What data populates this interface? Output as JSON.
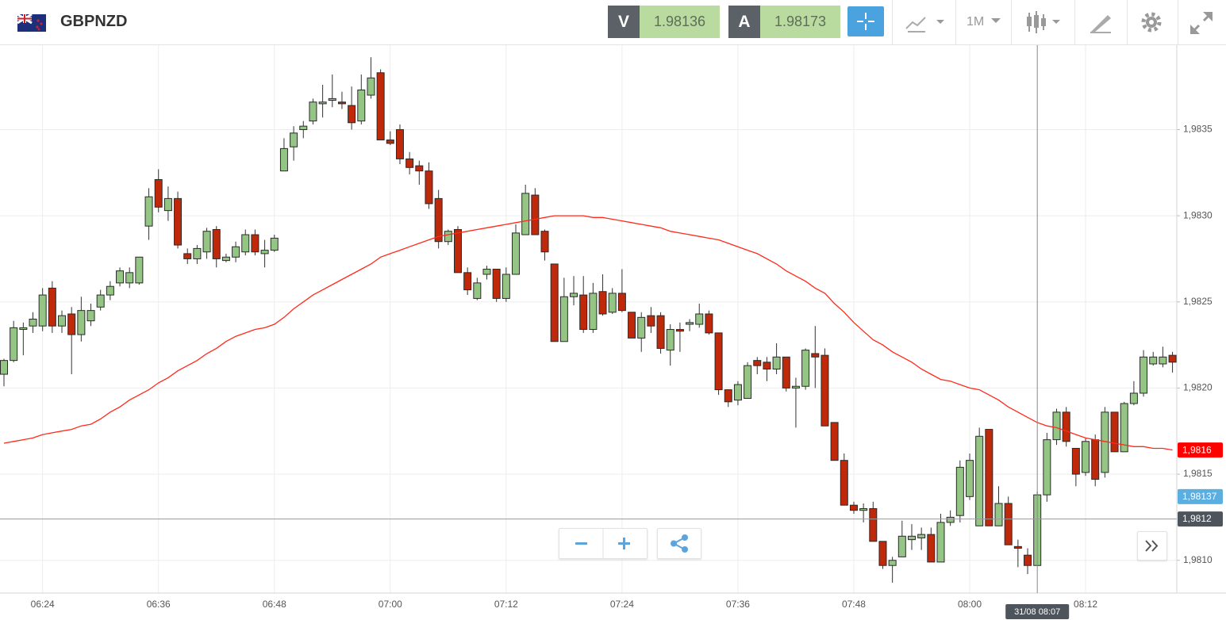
{
  "toolbar": {
    "symbol": "GBPNZD",
    "sell": {
      "label": "V",
      "price": 1.98136
    },
    "buy": {
      "label": "A",
      "price": 1.98173
    },
    "timeframe": "1M"
  },
  "chart_data": {
    "type": "candlestick",
    "categories": [
      null,
      null,
      null,
      null,
      "06:24",
      null,
      null,
      null,
      null,
      null,
      null,
      null,
      null,
      null,
      null,
      null,
      "06:36",
      null,
      null,
      null,
      null,
      null,
      null,
      null,
      null,
      null,
      null,
      null,
      "06:48",
      null,
      null,
      null,
      null,
      null,
      null,
      null,
      null,
      null,
      null,
      null,
      "07:00",
      null,
      null,
      null,
      null,
      null,
      null,
      null,
      null,
      null,
      null,
      null,
      "07:12",
      null,
      null,
      null,
      null,
      null,
      null,
      null,
      null,
      null,
      null,
      null,
      "07:24",
      null,
      null,
      null,
      null,
      null,
      null,
      null,
      null,
      null,
      null,
      null,
      "07:36",
      null,
      null,
      null,
      null,
      null,
      null,
      null,
      null,
      null,
      null,
      null,
      "07:48",
      null,
      null,
      null,
      null,
      null,
      null,
      null,
      null,
      null,
      null,
      null,
      "08:00",
      null,
      null,
      null,
      null,
      null,
      null,
      null,
      null,
      null,
      null,
      null,
      "08:12",
      null,
      null,
      null,
      null,
      null,
      null,
      null,
      null,
      null
    ],
    "open": [
      1.98208,
      1.98216,
      1.98234,
      1.98236,
      1.98236,
      1.98258,
      1.98236,
      1.98243,
      1.98231,
      1.98239,
      1.98247,
      1.98254,
      1.98261,
      1.98261,
      1.98261,
      1.98294,
      1.98321,
      1.98303,
      1.9831,
      1.98278,
      1.98275,
      1.98279,
      1.98292,
      1.98274,
      1.98276,
      1.98279,
      1.98289,
      1.98278,
      1.9828,
      1.98326,
      1.9834,
      1.9835,
      1.98355,
      1.98365,
      1.98367,
      1.98366,
      1.98364,
      1.98355,
      1.9837,
      1.98383,
      1.98344,
      1.9835,
      1.98333,
      1.98329,
      1.98326,
      1.9831,
      1.98285,
      1.98292,
      1.98267,
      1.98252,
      1.98266,
      1.98269,
      1.98252,
      1.98266,
      1.98289,
      1.98312,
      1.98291,
      1.98272,
      1.98227,
      1.98253,
      1.98254,
      1.98234,
      1.98256,
      1.98244,
      1.98255,
      1.98244,
      1.98229,
      1.98242,
      1.98242,
      1.98222,
      1.98234,
      1.98237,
      1.98237,
      1.98243,
      1.98232,
      1.98199,
      1.98193,
      1.98194,
      1.98216,
      1.98215,
      1.98211,
      1.98218,
      1.982,
      1.98201,
      1.9822,
      1.98219,
      1.9818,
      1.98158,
      1.98132,
      1.98129,
      1.9813,
      1.98111,
      1.98097,
      1.98102,
      1.98112,
      1.98113,
      1.98115,
      1.98099,
      1.98122,
      1.98126,
      1.98137,
      1.9812,
      1.98176,
      1.9812,
      1.98133,
      1.98108,
      1.98103,
      1.98097,
      1.98138,
      1.9817,
      1.98186,
      1.98165,
      1.98151,
      1.9817,
      1.98151,
      1.98186,
      1.98163,
      1.98191,
      1.98197,
      1.98214,
      1.98214,
      1.98219
    ],
    "high": [
      1.98217,
      1.98239,
      1.98238,
      1.98244,
      1.98258,
      1.98262,
      1.98245,
      1.98247,
      1.98253,
      1.98249,
      1.98257,
      1.98262,
      1.9827,
      1.9827,
      1.98276,
      1.98316,
      1.98327,
      1.98317,
      1.98314,
      1.98281,
      1.98283,
      1.98293,
      1.98294,
      1.98278,
      1.98285,
      1.98292,
      1.98292,
      1.98286,
      1.98289,
      1.98345,
      1.98352,
      1.98355,
      1.98368,
      1.98376,
      1.98382,
      1.98372,
      1.98375,
      1.98382,
      1.98392,
      1.98385,
      1.98349,
      1.98353,
      1.98337,
      1.98332,
      1.98331,
      1.98315,
      1.98292,
      1.98294,
      1.9827,
      1.98264,
      1.98271,
      1.98269,
      1.9827,
      1.98295,
      1.98318,
      1.98316,
      1.98292,
      1.98272,
      1.98264,
      1.98265,
      1.98265,
      1.98261,
      1.98266,
      1.98258,
      1.98269,
      1.98244,
      1.98244,
      1.98247,
      1.98244,
      1.98237,
      1.98238,
      1.9824,
      1.98249,
      1.98245,
      1.98232,
      1.98199,
      1.98204,
      1.98215,
      1.98218,
      1.98218,
      1.98226,
      1.98218,
      1.98206,
      1.98223,
      1.98236,
      1.98223,
      1.9818,
      1.98162,
      1.98134,
      1.98133,
      1.98134,
      1.98111,
      1.98102,
      1.98123,
      1.98121,
      1.98119,
      1.98119,
      1.98127,
      1.98129,
      1.98158,
      1.98162,
      1.98177,
      1.98176,
      1.98143,
      1.98137,
      1.98112,
      1.98107,
      1.9814,
      1.98174,
      1.98188,
      1.98189,
      1.98165,
      1.98171,
      1.98173,
      1.98189,
      1.98186,
      1.98192,
      1.98204,
      1.98222,
      1.98221,
      1.98224,
      1.98221
    ],
    "low": [
      1.98201,
      1.98215,
      1.98219,
      1.98232,
      1.98233,
      1.98232,
      1.98232,
      1.98208,
      1.98227,
      1.98236,
      1.98245,
      1.98251,
      1.98259,
      1.98258,
      1.9826,
      1.98286,
      1.98302,
      1.98297,
      1.98281,
      1.98272,
      1.98272,
      1.98275,
      1.9827,
      1.98273,
      1.98273,
      1.98277,
      1.98277,
      1.9827,
      1.98279,
      1.98326,
      1.98332,
      1.98345,
      1.98353,
      1.98357,
      1.98363,
      1.98362,
      1.9835,
      1.98353,
      1.98368,
      1.98344,
      1.98341,
      1.9833,
      1.98324,
      1.98318,
      1.98304,
      1.98281,
      1.98283,
      1.98267,
      1.98254,
      1.98251,
      1.98263,
      1.9825,
      1.9825,
      1.98266,
      1.98289,
      1.98289,
      1.98274,
      1.98227,
      1.98227,
      1.98248,
      1.98232,
      1.98232,
      1.98242,
      1.98243,
      1.98244,
      1.98229,
      1.98221,
      1.98232,
      1.9822,
      1.98213,
      1.98221,
      1.98233,
      1.98235,
      1.98231,
      1.98196,
      1.98189,
      1.9819,
      1.98194,
      1.98208,
      1.98204,
      1.98208,
      1.98198,
      1.98177,
      1.98199,
      1.982,
      1.98178,
      1.98158,
      1.98132,
      1.98127,
      1.98122,
      1.98111,
      1.98095,
      1.98087,
      1.98102,
      1.98106,
      1.98106,
      1.98099,
      1.98099,
      1.9812,
      1.98122,
      1.98135,
      1.9812,
      1.9812,
      1.9812,
      1.98109,
      1.98096,
      1.98092,
      1.98097,
      1.98134,
      1.98167,
      1.98166,
      1.98143,
      1.98149,
      1.98143,
      1.98148,
      1.98163,
      1.98163,
      1.9819,
      1.98195,
      1.98213,
      1.98212,
      1.98209
    ],
    "close": [
      1.98216,
      1.98235,
      1.98235,
      1.9824,
      1.98254,
      1.98236,
      1.98242,
      1.98231,
      1.98245,
      1.98245,
      1.98254,
      1.98259,
      1.98268,
      1.98267,
      1.98276,
      1.98311,
      1.98305,
      1.9831,
      1.98283,
      1.98275,
      1.98281,
      1.98291,
      1.98275,
      1.98276,
      1.98282,
      1.98289,
      1.98279,
      1.9828,
      1.98287,
      1.98339,
      1.98348,
      1.98352,
      1.98366,
      1.98366,
      1.98368,
      1.98365,
      1.98354,
      1.98373,
      1.9838,
      1.98344,
      1.98342,
      1.98333,
      1.98328,
      1.98326,
      1.98307,
      1.98285,
      1.98291,
      1.98267,
      1.98257,
      1.98261,
      1.98269,
      1.98252,
      1.98266,
      1.9829,
      1.98313,
      1.98289,
      1.98279,
      1.98227,
      1.98253,
      1.98255,
      1.98234,
      1.98255,
      1.98243,
      1.98255,
      1.98245,
      1.98229,
      1.98241,
      1.98236,
      1.98223,
      1.98234,
      1.98233,
      1.98238,
      1.98243,
      1.98232,
      1.98199,
      1.98192,
      1.98202,
      1.98213,
      1.98213,
      1.98211,
      1.98218,
      1.982,
      1.98201,
      1.98222,
      1.98218,
      1.98178,
      1.98158,
      1.98132,
      1.98129,
      1.9813,
      1.98111,
      1.98097,
      1.981,
      1.98114,
      1.98114,
      1.98115,
      1.98099,
      1.98122,
      1.98125,
      1.98154,
      1.98158,
      1.98172,
      1.9812,
      1.98133,
      1.98109,
      1.98107,
      1.98097,
      1.98138,
      1.9817,
      1.98186,
      1.98169,
      1.9815,
      1.98169,
      1.98147,
      1.98186,
      1.98163,
      1.98191,
      1.98197,
      1.98218,
      1.98218,
      1.98218,
      1.98215
    ],
    "up_color": "#95c585",
    "down_color": "#c0280a",
    "moving_average": {
      "color": "#ff2a1a",
      "values": [
        1.98168,
        1.98169,
        1.9817,
        1.98171,
        1.98173,
        1.98174,
        1.98175,
        1.98176,
        1.98178,
        1.98179,
        1.98182,
        1.98186,
        1.98189,
        1.98193,
        1.98196,
        1.98199,
        1.98203,
        1.98206,
        1.9821,
        1.98213,
        1.98216,
        1.9822,
        1.98223,
        1.98227,
        1.9823,
        1.98232,
        1.98234,
        1.98235,
        1.98237,
        1.98241,
        1.98246,
        1.9825,
        1.98254,
        1.98257,
        1.9826,
        1.98263,
        1.98266,
        1.98269,
        1.98272,
        1.98276,
        1.98278,
        1.9828,
        1.98282,
        1.98284,
        1.98286,
        1.98288,
        1.98289,
        1.9829,
        1.98291,
        1.98292,
        1.98293,
        1.98294,
        1.98295,
        1.98296,
        1.98297,
        1.98298,
        1.98299,
        1.983,
        1.983,
        1.983,
        1.983,
        1.98299,
        1.98299,
        1.98298,
        1.98297,
        1.98296,
        1.98295,
        1.98294,
        1.98293,
        1.98291,
        1.9829,
        1.98289,
        1.98288,
        1.98287,
        1.98286,
        1.98284,
        1.98282,
        1.9828,
        1.98278,
        1.98275,
        1.98272,
        1.98268,
        1.98265,
        1.98262,
        1.98258,
        1.98255,
        1.98249,
        1.98244,
        1.98238,
        1.98233,
        1.98228,
        1.98225,
        1.98221,
        1.98218,
        1.98215,
        1.98211,
        1.98208,
        1.98205,
        1.98204,
        1.98202,
        1.982,
        1.98199,
        1.98196,
        1.98193,
        1.98189,
        1.98186,
        1.98183,
        1.9818,
        1.98178,
        1.98177,
        1.98175,
        1.98173,
        1.98171,
        1.9817,
        1.98169,
        1.98168,
        1.98167,
        1.98166,
        1.98166,
        1.98165,
        1.98165,
        1.98164
      ]
    },
    "ylim": [
      1.98081,
      1.98399
    ],
    "yticks": [
      {
        "value": 1.981,
        "label": "1,9810"
      },
      {
        "value": 1.9815,
        "label": "1,9815"
      },
      {
        "value": 1.982,
        "label": "1,9820"
      },
      {
        "value": 1.9825,
        "label": "1,9825"
      },
      {
        "value": 1.983,
        "label": "1,9830"
      },
      {
        "value": 1.9835,
        "label": "1,9835"
      }
    ],
    "grid": true,
    "price_markers": [
      {
        "value": 1.98164,
        "label": "1,9816",
        "color": "#ff0000"
      },
      {
        "value": 1.98137,
        "label": "1,98137",
        "color": "#5aaee0"
      }
    ],
    "crosshair": {
      "x_label": "31/08 08:07",
      "y": {
        "value": 1.98124,
        "label": "1,9812"
      },
      "color": "#4d545c"
    }
  }
}
